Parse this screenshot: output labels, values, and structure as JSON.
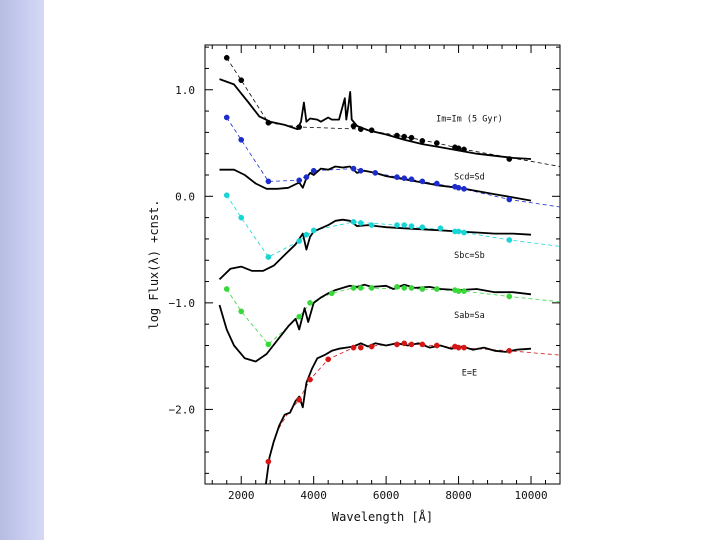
{
  "slide": {
    "sidebar_color": "#c3c7ee"
  },
  "chart_data": {
    "type": "line",
    "title": "",
    "xlabel": "Wavelength [Å]",
    "ylabel": "log Flux(λ) +cnst.",
    "xlim": [
      1000,
      10800
    ],
    "ylim": [
      -2.7,
      1.42
    ],
    "xticks": [
      2000,
      4000,
      6000,
      8000,
      10000
    ],
    "xtick_labels": [
      "2000",
      "4000",
      "6000",
      "8000",
      "10000"
    ],
    "yticks": [
      1.0,
      0.0,
      -1.0,
      -2.0
    ],
    "ytick_labels": [
      "1.0",
      "0.0",
      "−1.0",
      "−2.0"
    ],
    "grid": false,
    "series": [
      {
        "name": "Im=Im (5 Gyr)",
        "color": "#000000",
        "label_pos": [
          8300,
          0.7
        ],
        "points": [
          [
            1600,
            1.3
          ],
          [
            2000,
            1.09
          ],
          [
            2750,
            0.69
          ],
          [
            3600,
            0.65
          ],
          [
            5100,
            0.66
          ],
          [
            5300,
            0.63
          ],
          [
            5600,
            0.62
          ],
          [
            6300,
            0.57
          ],
          [
            6500,
            0.56
          ],
          [
            6700,
            0.55
          ],
          [
            7000,
            0.52
          ],
          [
            7400,
            0.5
          ],
          [
            7900,
            0.46
          ],
          [
            8000,
            0.45
          ],
          [
            8150,
            0.44
          ],
          [
            9400,
            0.35
          ]
        ],
        "dash_line": [
          [
            1600,
            1.3
          ],
          [
            2000,
            1.09
          ],
          [
            2750,
            0.69
          ],
          [
            3600,
            0.65
          ],
          [
            5300,
            0.63
          ],
          [
            6500,
            0.56
          ],
          [
            7400,
            0.5
          ],
          [
            8150,
            0.44
          ],
          [
            10800,
            0.28
          ]
        ],
        "model": [
          [
            1400,
            1.1
          ],
          [
            1800,
            1.05
          ],
          [
            2200,
            0.88
          ],
          [
            2500,
            0.75
          ],
          [
            2800,
            0.7
          ],
          [
            3200,
            0.67
          ],
          [
            3550,
            0.63
          ],
          [
            3650,
            0.7
          ],
          [
            3730,
            0.88
          ],
          [
            3800,
            0.7
          ],
          [
            3900,
            0.73
          ],
          [
            4100,
            0.72
          ],
          [
            4200,
            0.7
          ],
          [
            4400,
            0.74
          ],
          [
            4500,
            0.72
          ],
          [
            4700,
            0.72
          ],
          [
            4860,
            0.92
          ],
          [
            4900,
            0.72
          ],
          [
            4960,
            0.85
          ],
          [
            5007,
            0.98
          ],
          [
            5050,
            0.72
          ],
          [
            5200,
            0.66
          ],
          [
            5500,
            0.62
          ],
          [
            6000,
            0.58
          ],
          [
            6500,
            0.53
          ],
          [
            7000,
            0.49
          ],
          [
            7500,
            0.46
          ],
          [
            8000,
            0.43
          ],
          [
            8500,
            0.4
          ],
          [
            9000,
            0.38
          ],
          [
            9500,
            0.36
          ],
          [
            10000,
            0.35
          ]
        ]
      },
      {
        "name": "Scd=Sd",
        "color": "#1d2ccc",
        "label_pos": [
          8300,
          0.16
        ],
        "points": [
          [
            1600,
            0.74
          ],
          [
            2000,
            0.53
          ],
          [
            2750,
            0.14
          ],
          [
            3600,
            0.15
          ],
          [
            3800,
            0.18
          ],
          [
            4000,
            0.24
          ],
          [
            5100,
            0.26
          ],
          [
            5300,
            0.24
          ],
          [
            5700,
            0.22
          ],
          [
            6300,
            0.18
          ],
          [
            6500,
            0.17
          ],
          [
            6700,
            0.16
          ],
          [
            7000,
            0.14
          ],
          [
            7400,
            0.12
          ],
          [
            7900,
            0.09
          ],
          [
            8000,
            0.08
          ],
          [
            8150,
            0.07
          ],
          [
            9400,
            -0.03
          ]
        ],
        "dash_line": [
          [
            1600,
            0.74
          ],
          [
            2000,
            0.53
          ],
          [
            2750,
            0.14
          ],
          [
            3600,
            0.15
          ],
          [
            4000,
            0.24
          ],
          [
            5100,
            0.26
          ],
          [
            6300,
            0.18
          ],
          [
            8000,
            0.08
          ],
          [
            9400,
            -0.03
          ],
          [
            10800,
            -0.1
          ]
        ],
        "model": [
          [
            1400,
            0.25
          ],
          [
            1800,
            0.25
          ],
          [
            2100,
            0.2
          ],
          [
            2400,
            0.12
          ],
          [
            2700,
            0.07
          ],
          [
            3000,
            0.07
          ],
          [
            3300,
            0.08
          ],
          [
            3600,
            0.13
          ],
          [
            3700,
            0.08
          ],
          [
            3800,
            0.17
          ],
          [
            3900,
            0.22
          ],
          [
            4000,
            0.2
          ],
          [
            4200,
            0.26
          ],
          [
            4400,
            0.25
          ],
          [
            4600,
            0.28
          ],
          [
            4800,
            0.27
          ],
          [
            5000,
            0.28
          ],
          [
            5200,
            0.22
          ],
          [
            5400,
            0.24
          ],
          [
            5700,
            0.22
          ],
          [
            6000,
            0.19
          ],
          [
            6500,
            0.16
          ],
          [
            7000,
            0.13
          ],
          [
            7500,
            0.1
          ],
          [
            8000,
            0.08
          ],
          [
            8500,
            0.05
          ],
          [
            9000,
            0.02
          ],
          [
            9500,
            -0.01
          ],
          [
            10000,
            -0.04
          ]
        ]
      },
      {
        "name": "Sbc=Sb",
        "color": "#18d5d5",
        "label_pos": [
          8300,
          -0.58
        ],
        "points": [
          [
            1600,
            0.01
          ],
          [
            2000,
            -0.2
          ],
          [
            2750,
            -0.57
          ],
          [
            3600,
            -0.42
          ],
          [
            3800,
            -0.36
          ],
          [
            4000,
            -0.32
          ],
          [
            5100,
            -0.24
          ],
          [
            5300,
            -0.25
          ],
          [
            5600,
            -0.27
          ],
          [
            6300,
            -0.27
          ],
          [
            6500,
            -0.27
          ],
          [
            6700,
            -0.28
          ],
          [
            7000,
            -0.29
          ],
          [
            7500,
            -0.3
          ],
          [
            7900,
            -0.33
          ],
          [
            8000,
            -0.33
          ],
          [
            8150,
            -0.34
          ],
          [
            9400,
            -0.41
          ]
        ],
        "dash_line": [
          [
            1600,
            0.01
          ],
          [
            2000,
            -0.2
          ],
          [
            2750,
            -0.57
          ],
          [
            3600,
            -0.42
          ],
          [
            4000,
            -0.32
          ],
          [
            5100,
            -0.24
          ],
          [
            6300,
            -0.27
          ],
          [
            8000,
            -0.33
          ],
          [
            9400,
            -0.41
          ],
          [
            10800,
            -0.47
          ]
        ],
        "model": [
          [
            1400,
            -0.78
          ],
          [
            1700,
            -0.68
          ],
          [
            2000,
            -0.66
          ],
          [
            2300,
            -0.7
          ],
          [
            2600,
            -0.7
          ],
          [
            2900,
            -0.65
          ],
          [
            3200,
            -0.55
          ],
          [
            3500,
            -0.45
          ],
          [
            3700,
            -0.35
          ],
          [
            3800,
            -0.5
          ],
          [
            3900,
            -0.38
          ],
          [
            4000,
            -0.33
          ],
          [
            4200,
            -0.3
          ],
          [
            4400,
            -0.27
          ],
          [
            4600,
            -0.23
          ],
          [
            4800,
            -0.22
          ],
          [
            5000,
            -0.23
          ],
          [
            5200,
            -0.28
          ],
          [
            5500,
            -0.27
          ],
          [
            6000,
            -0.29
          ],
          [
            6500,
            -0.3
          ],
          [
            7000,
            -0.31
          ],
          [
            7500,
            -0.32
          ],
          [
            8000,
            -0.33
          ],
          [
            8500,
            -0.34
          ],
          [
            9000,
            -0.35
          ],
          [
            9500,
            -0.35
          ],
          [
            10000,
            -0.36
          ]
        ]
      },
      {
        "name": "Sab=Sa",
        "color": "#3ad73a",
        "label_pos": [
          8300,
          -1.14
        ],
        "points": [
          [
            1600,
            -0.87
          ],
          [
            2000,
            -1.08
          ],
          [
            2750,
            -1.39
          ],
          [
            3600,
            -1.13
          ],
          [
            3900,
            -1.0
          ],
          [
            4500,
            -0.91
          ],
          [
            5100,
            -0.86
          ],
          [
            5300,
            -0.86
          ],
          [
            5600,
            -0.86
          ],
          [
            6300,
            -0.85
          ],
          [
            6500,
            -0.86
          ],
          [
            6700,
            -0.86
          ],
          [
            7000,
            -0.87
          ],
          [
            7400,
            -0.87
          ],
          [
            7900,
            -0.88
          ],
          [
            8000,
            -0.89
          ],
          [
            8150,
            -0.89
          ],
          [
            9400,
            -0.94
          ]
        ],
        "dash_line": [
          [
            1600,
            -0.87
          ],
          [
            2000,
            -1.08
          ],
          [
            2750,
            -1.39
          ],
          [
            3600,
            -1.13
          ],
          [
            3900,
            -1.0
          ],
          [
            4500,
            -0.91
          ],
          [
            5100,
            -0.86
          ],
          [
            7000,
            -0.87
          ],
          [
            8150,
            -0.89
          ],
          [
            9400,
            -0.94
          ],
          [
            10800,
            -0.99
          ]
        ],
        "model": [
          [
            1400,
            -1.02
          ],
          [
            1600,
            -1.25
          ],
          [
            1800,
            -1.4
          ],
          [
            2100,
            -1.52
          ],
          [
            2400,
            -1.55
          ],
          [
            2700,
            -1.48
          ],
          [
            3000,
            -1.35
          ],
          [
            3300,
            -1.22
          ],
          [
            3500,
            -1.15
          ],
          [
            3600,
            -1.25
          ],
          [
            3750,
            -1.05
          ],
          [
            3850,
            -1.18
          ],
          [
            4000,
            -1.0
          ],
          [
            4200,
            -0.95
          ],
          [
            4400,
            -0.91
          ],
          [
            4600,
            -0.88
          ],
          [
            4800,
            -0.86
          ],
          [
            5000,
            -0.84
          ],
          [
            5200,
            -0.85
          ],
          [
            5400,
            -0.83
          ],
          [
            5600,
            -0.85
          ],
          [
            6000,
            -0.84
          ],
          [
            6200,
            -0.87
          ],
          [
            6500,
            -0.83
          ],
          [
            6800,
            -0.86
          ],
          [
            7200,
            -0.85
          ],
          [
            7500,
            -0.87
          ],
          [
            8000,
            -0.88
          ],
          [
            8500,
            -0.87
          ],
          [
            9000,
            -0.9
          ],
          [
            9500,
            -0.9
          ],
          [
            10000,
            -0.92
          ]
        ]
      },
      {
        "name": "E=E",
        "color": "#d41616",
        "label_pos": [
          8300,
          -1.68
        ],
        "points": [
          [
            2750,
            -2.49
          ],
          [
            3600,
            -1.91
          ],
          [
            3900,
            -1.72
          ],
          [
            4400,
            -1.53
          ],
          [
            5100,
            -1.42
          ],
          [
            5300,
            -1.42
          ],
          [
            5600,
            -1.41
          ],
          [
            6300,
            -1.39
          ],
          [
            6500,
            -1.38
          ],
          [
            6700,
            -1.39
          ],
          [
            7000,
            -1.39
          ],
          [
            7400,
            -1.4
          ],
          [
            7900,
            -1.41
          ],
          [
            8000,
            -1.42
          ],
          [
            8150,
            -1.42
          ],
          [
            9400,
            -1.45
          ]
        ],
        "dash_line": [
          [
            2750,
            -2.49
          ],
          [
            3000,
            -2.2
          ],
          [
            3300,
            -2.03
          ],
          [
            3600,
            -1.91
          ],
          [
            3900,
            -1.72
          ],
          [
            4400,
            -1.53
          ],
          [
            5100,
            -1.42
          ],
          [
            6500,
            -1.38
          ],
          [
            8000,
            -1.42
          ],
          [
            9400,
            -1.45
          ],
          [
            10800,
            -1.49
          ]
        ],
        "model": [
          [
            2680,
            -2.7
          ],
          [
            2780,
            -2.45
          ],
          [
            2900,
            -2.3
          ],
          [
            3050,
            -2.15
          ],
          [
            3200,
            -2.05
          ],
          [
            3350,
            -2.03
          ],
          [
            3500,
            -1.92
          ],
          [
            3600,
            -1.88
          ],
          [
            3700,
            -1.98
          ],
          [
            3800,
            -1.75
          ],
          [
            3950,
            -1.62
          ],
          [
            4100,
            -1.52
          ],
          [
            4300,
            -1.49
          ],
          [
            4500,
            -1.45
          ],
          [
            4700,
            -1.43
          ],
          [
            4900,
            -1.42
          ],
          [
            5100,
            -1.41
          ],
          [
            5300,
            -1.38
          ],
          [
            5500,
            -1.41
          ],
          [
            5700,
            -1.38
          ],
          [
            6000,
            -1.4
          ],
          [
            6300,
            -1.38
          ],
          [
            6600,
            -1.4
          ],
          [
            6900,
            -1.38
          ],
          [
            7200,
            -1.42
          ],
          [
            7500,
            -1.4
          ],
          [
            7800,
            -1.43
          ],
          [
            8100,
            -1.41
          ],
          [
            8400,
            -1.44
          ],
          [
            8700,
            -1.42
          ],
          [
            9000,
            -1.45
          ],
          [
            9300,
            -1.46
          ],
          [
            9600,
            -1.44
          ],
          [
            10000,
            -1.43
          ]
        ]
      }
    ]
  }
}
